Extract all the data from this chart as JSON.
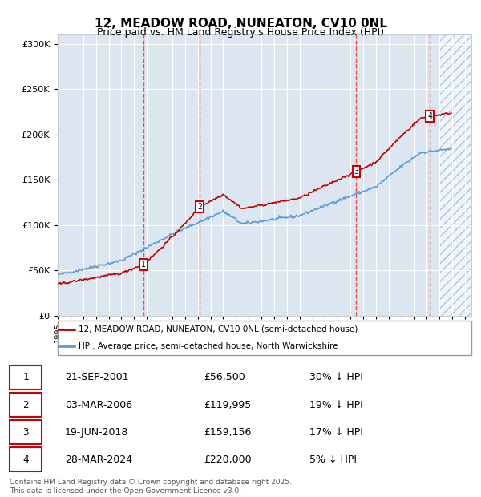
{
  "title": "12, MEADOW ROAD, NUNEATON, CV10 0NL",
  "subtitle": "Price paid vs. HM Land Registry's House Price Index (HPI)",
  "legend_line1": "12, MEADOW ROAD, NUNEATON, CV10 0NL (semi-detached house)",
  "legend_line2": "HPI: Average price, semi-detached house, North Warwickshire",
  "footer": "Contains HM Land Registry data © Crown copyright and database right 2025.\nThis data is licensed under the Open Government Licence v3.0.",
  "transactions": [
    {
      "num": 1,
      "date": "21-SEP-2001",
      "price": 56500,
      "pct": "30%",
      "x_year": 2001.72
    },
    {
      "num": 2,
      "date": "03-MAR-2006",
      "price": 119995,
      "pct": "19%",
      "x_year": 2006.17
    },
    {
      "num": 3,
      "date": "19-JUN-2018",
      "price": 159156,
      "pct": "17%",
      "x_year": 2018.46
    },
    {
      "num": 4,
      "date": "28-MAR-2024",
      "price": 220000,
      "pct": "5%",
      "x_year": 2024.24
    }
  ],
  "hpi_color": "#5b9bd5",
  "price_color": "#c00000",
  "vline_color": "#ff0000",
  "hatch_color": "#5b9bd5",
  "ylim": [
    0,
    310000
  ],
  "yticks": [
    0,
    50000,
    100000,
    150000,
    200000,
    250000,
    300000
  ],
  "xlim_start": 1995.0,
  "xlim_end": 2027.5,
  "background_chart": "#dce6f1",
  "future_hatch_start": 2025.0
}
